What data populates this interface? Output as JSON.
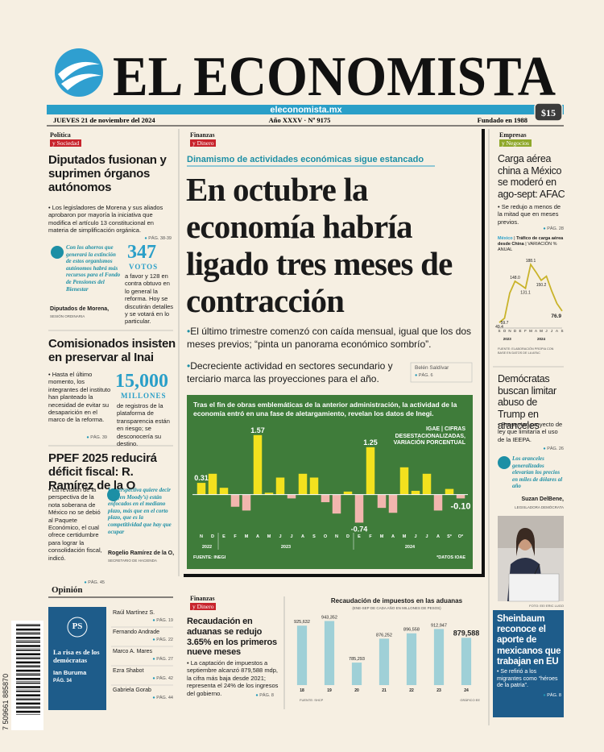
{
  "masthead": {
    "title": "EL ECONOMISTA",
    "url": "eleconomista.mx",
    "date": "JUEVES 21 de noviembre del 2024",
    "edition": "Año XXXV · Nº 9175",
    "founded": "Fundado en 1988",
    "price": "$15"
  },
  "politica": {
    "section_top": "Política",
    "section_bottom": "y Sociedad",
    "headline": "Diputados fusionan y suprimen órganos autónomos",
    "bullet": "Los legisladores de Morena y sus aliados aprobaron por mayoría la iniciativa que modifica el artículo 13 constitucional en materia de simplificación orgánica.",
    "page": "PÁG. 38-39",
    "quote": "Con los ahorros que generará la extinción de estos organismos autónomos habrá más recursos para el Fondo de Pensiones del Bienestar",
    "quote_author": "Diputados de Morena,",
    "quote_role": "SESIÓN ORDINARIA",
    "stat": 347,
    "stat_unit": "VOTOS",
    "stat_text": "a favor y 128 en contra obtuvo en lo general la reforma. Hoy se discutirán detalles y se votará en lo particular."
  },
  "inai": {
    "headline": "Comisionados insisten en preservar al Inai",
    "bullet": "Hasta el último momento, los integrantes del instituto han planteado la necesidad de evitar su desaparición en el marco de la reforma.",
    "page": "PÁG. 39",
    "stat": "15,000",
    "stat_unit": "MILLONES",
    "stat_text": "de registros de la plataforma de transparencia están en riesgo; se desconocería su destino."
  },
  "ppef": {
    "headline": "PPEF 2025 reducirá déficit fiscal: R. Ramírez de la O",
    "bullet": "La revisión de la perspectiva de la nota soberana de México no se debió al Paquete Económico, el cual ofrece certidumbre para lograr la consolidación fiscal, indicó.",
    "page": "PÁG. 45",
    "quote": "La perspectiva quiere decir que (en Moody’s) están enfocados en el mediano plazo, más que en el corto plazo, que es la competitividad que hay que ocupar",
    "quote_author": "Rogelio Ramírez de la O,",
    "quote_role": "SECRETARIO DE HACIENDA"
  },
  "opinion": {
    "title": "Opinión",
    "featured": {
      "logo": "PS",
      "headline": "La risa es de los demócratas",
      "author": "Ian Buruma",
      "page": "PÁG. 34"
    },
    "columns": [
      {
        "name": "Raúl Martínez S.",
        "page": "PÁG. 19"
      },
      {
        "name": "Fernando Andrade",
        "page": "PÁG. 22"
      },
      {
        "name": "Marco A. Mares",
        "page": "PÁG. 27"
      },
      {
        "name": "Ezra Shabot",
        "page": "PÁG. 42"
      },
      {
        "name": "Gabriela Gorab",
        "page": "PÁG. 44"
      }
    ]
  },
  "barcode": "7 509661 885870",
  "main": {
    "section_top": "Finanzas",
    "section_bottom": "y Dinero",
    "kicker": "Dinamismo de actividades económicas sigue estancado",
    "headline": "En octubre la economía habría ligado tres meses de contracción",
    "bullets": [
      "El último trimestre comenzó con caída mensual, igual que los dos meses previos; “pinta un panorama económico sombrío”.",
      "Decreciente actividad en sectores secundario y terciario marca las proyecciones para el año."
    ],
    "author": "Belén Saldívar",
    "page": "PÁG. 6"
  },
  "aduanas": {
    "section_top": "Finanzas",
    "section_bottom": "y Dinero",
    "headline": "Recaudación en aduanas se redujo 3.65% en los primeros nueve meses",
    "bullet": "La captación de impuestos a septiembre alcanzó 879,588 mdp, la cifra más baja desde 2021; representa el 24% de los ingresos del gobierno.",
    "page": "PÁG. 8"
  },
  "carga": {
    "section_top": "Empresas",
    "section_bottom": "y Negocios",
    "headline": "Carga aérea china a México se moderó en ago-sept: AFAC",
    "bullet": "Se redujo a menos de la mitad que en meses previos.",
    "page": "PÁG. 28"
  },
  "democratas": {
    "headline": "Demócratas buscan limitar abuso de Trump en aranceles",
    "bullet": "Presentan proyecto de ley que limitaría el uso de la IEEPA.",
    "page": "PÁG. 26",
    "quote": "Los aranceles generalizados elevarían los precios en miles de dólares al año",
    "quote_author": "Suzan DelBene,",
    "quote_role": "LEGISLADORA DEMÓCRATA"
  },
  "photo_credit": "FOTO: EE/ ERIC LUGO",
  "sheinbaum": {
    "headline": "Sheinbaum reconoce el aporte de mexicanos que trabajan en EU",
    "bullet": "Se refirió a los migrantes como “héroes de la patria”.",
    "page": "PÁG. 8"
  },
  "chart_data": [
    {
      "type": "bar",
      "title": "Tras el fin de obras emblemáticas de la anterior administración, la actividad de la economía entró en una fase de aletargamiento, revelan los datos de Inegi.",
      "legend_title": "IGAE",
      "legend_text": "CIFRAS DESESTACIONALIZADAS, VARIACIÓN PORCENTUAL",
      "source": "FUENTE: INEGI",
      "note": "*DATOS IOAE",
      "categories": [
        "N",
        "D",
        "E",
        "F",
        "M",
        "A",
        "M",
        "J",
        "J",
        "A",
        "S",
        "O",
        "N",
        "D",
        "E",
        "F",
        "M",
        "A",
        "M",
        "J",
        "J",
        "A",
        "S*",
        "O*"
      ],
      "years": [
        "2022",
        "2023",
        "2024"
      ],
      "values": [
        0.31,
        0.55,
        0.18,
        -0.32,
        -0.42,
        1.57,
        0.05,
        0.45,
        -0.1,
        0.55,
        0.45,
        -0.2,
        -0.5,
        0.08,
        -0.74,
        1.25,
        -0.35,
        -0.48,
        0.72,
        0.1,
        0.55,
        -0.42,
        0.15,
        -0.1
      ],
      "value_labels": [
        "0.31",
        null,
        null,
        null,
        null,
        "1.57",
        null,
        null,
        null,
        null,
        null,
        null,
        null,
        null,
        "-0.74",
        "1.25",
        null,
        null,
        null,
        null,
        null,
        null,
        null,
        "-0.10"
      ],
      "ylim": [
        -0.9,
        1.8
      ],
      "colors": {
        "positive": "#f3e11e",
        "negative": "#f2b6ae"
      }
    },
    {
      "type": "line",
      "kicker": "México",
      "title": "Tráfico de carga aérea desde China",
      "unit": "VARIACIÓN % ANUAL",
      "source": "FUENTE: ELABORACIÓN PROPIA CON BASE EN DATOS DE LA AFAC",
      "categories": [
        "S",
        "O",
        "N",
        "D",
        "E",
        "F",
        "M",
        "A",
        "M",
        "J",
        "J",
        "A",
        "S"
      ],
      "years": [
        "2023",
        "2024"
      ],
      "values": [
        49.4,
        59.7,
        120,
        148.0,
        140,
        131.1,
        188.1,
        170,
        150.2,
        160,
        125,
        95,
        76.9
      ],
      "value_labels": [
        "49.4",
        "59.7",
        null,
        "148.0",
        null,
        "131.1",
        "188.1",
        null,
        "150.2",
        null,
        null,
        null,
        "76.9"
      ],
      "ylim": [
        40,
        200
      ],
      "color": "#c9b32a"
    },
    {
      "type": "bar",
      "title": "Recaudación de impuestos en las aduanas",
      "subtitle": "(ENE-SEP DE CADA AÑO EN MILLONES DE PESOS)",
      "source": "FUENTE: SHCP",
      "credit": "GRÁFICO EE",
      "categories": [
        "18",
        "19",
        "20",
        "21",
        "22",
        "23",
        "24"
      ],
      "values": [
        925632,
        943352,
        785293,
        876252,
        896558,
        912947,
        879588
      ],
      "value_labels": [
        "925,632",
        "943,352",
        "785,293",
        "876,252",
        "896,558",
        "912,947",
        "879,588"
      ],
      "ylim": [
        700000,
        960000
      ],
      "color": "#9fd0d7"
    }
  ]
}
